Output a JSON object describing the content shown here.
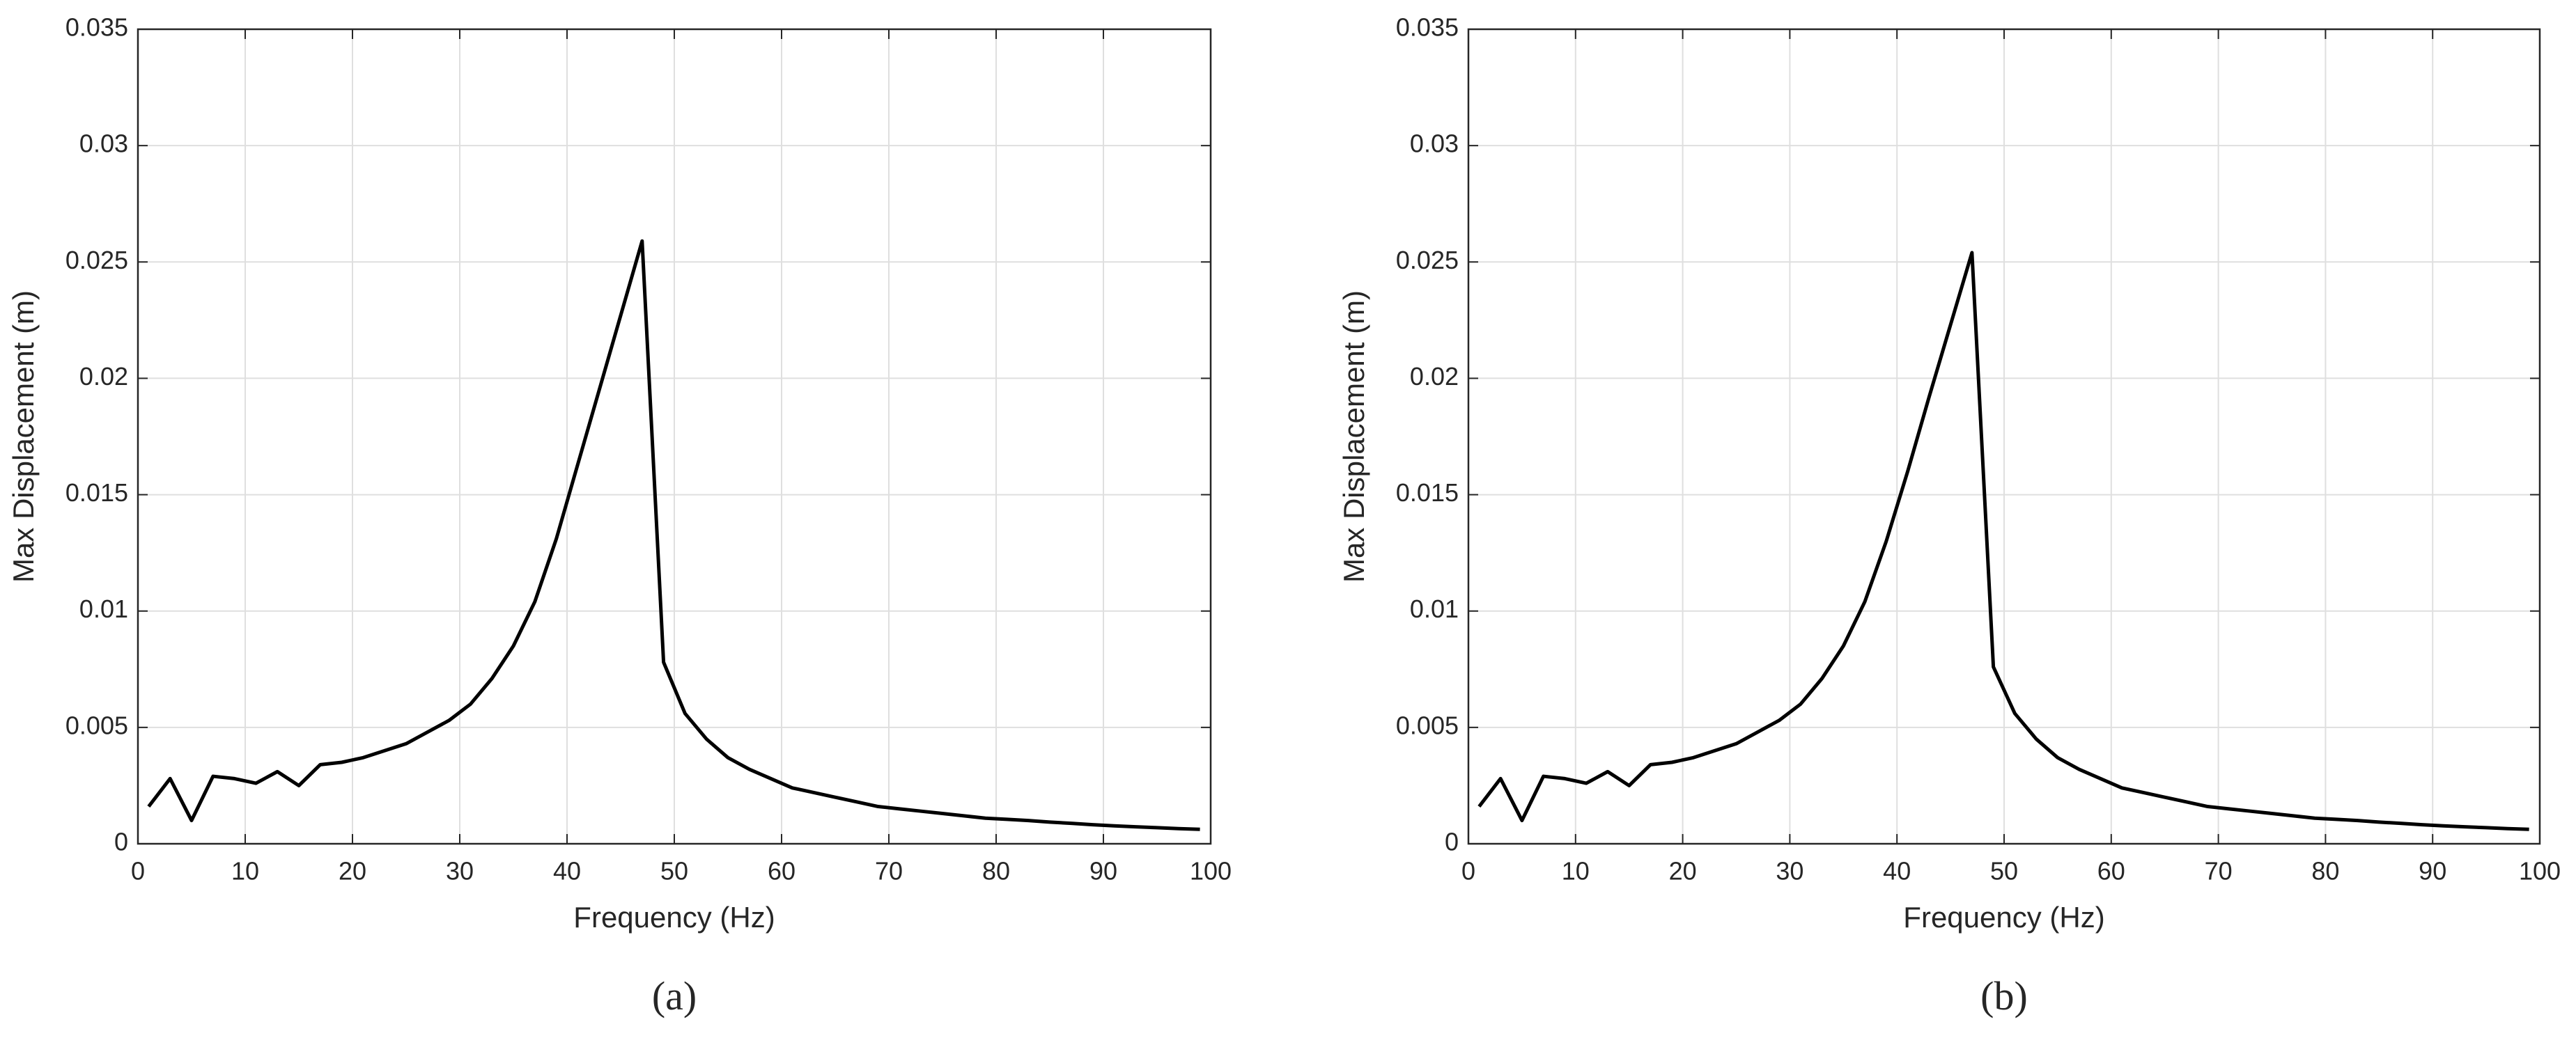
{
  "chart_data": [
    {
      "type": "line",
      "caption": "(a)",
      "xlabel": "Frequency (Hz)",
      "ylabel": "Max Displacement (m)",
      "xlim": [
        0,
        100
      ],
      "xticks": [
        0,
        10,
        20,
        30,
        40,
        50,
        60,
        70,
        80,
        90,
        100
      ],
      "ylim": [
        0,
        0.035
      ],
      "yticks": [
        0,
        0.005,
        0.01,
        0.015,
        0.02,
        0.025,
        0.03,
        0.035
      ],
      "grid": true,
      "x": [
        1,
        3,
        5,
        7,
        9,
        11,
        13,
        15,
        17,
        19,
        21,
        23,
        25,
        27,
        29,
        31,
        33,
        35,
        37,
        39,
        41,
        43,
        45,
        47,
        49,
        51,
        53,
        55,
        57,
        59,
        61,
        63,
        65,
        67,
        69,
        71,
        73,
        75,
        77,
        79,
        81,
        83,
        85,
        87,
        89,
        91,
        93,
        95,
        97,
        99
      ],
      "series": [
        {
          "color": "#000000",
          "values": [
            0.0016,
            0.0028,
            0.001,
            0.0029,
            0.0028,
            0.0026,
            0.0031,
            0.0025,
            0.0034,
            0.0035,
            0.0037,
            0.004,
            0.0043,
            0.0048,
            0.0053,
            0.006,
            0.0071,
            0.0085,
            0.0104,
            0.0131,
            0.0163,
            0.0195,
            0.0227,
            0.0259,
            0.0078,
            0.0056,
            0.0045,
            0.0037,
            0.0032,
            0.0028,
            0.0024,
            0.0022,
            0.002,
            0.0018,
            0.0016,
            0.0015,
            0.0014,
            0.0013,
            0.0012,
            0.0011,
            0.00105,
            0.001,
            0.00093,
            0.00088,
            0.00082,
            0.00077,
            0.00073,
            0.00069,
            0.00065,
            0.00062
          ]
        }
      ]
    },
    {
      "type": "line",
      "caption": "(b)",
      "xlabel": "Frequency (Hz)",
      "ylabel": "Max Displacement (m)",
      "xlim": [
        0,
        100
      ],
      "xticks": [
        0,
        10,
        20,
        30,
        40,
        50,
        60,
        70,
        80,
        90,
        100
      ],
      "ylim": [
        0,
        0.035
      ],
      "yticks": [
        0,
        0.005,
        0.01,
        0.015,
        0.02,
        0.025,
        0.03,
        0.035
      ],
      "grid": true,
      "x": [
        1,
        3,
        5,
        7,
        9,
        11,
        13,
        15,
        17,
        19,
        21,
        23,
        25,
        27,
        29,
        31,
        33,
        35,
        37,
        39,
        41,
        43,
        45,
        47,
        49,
        51,
        53,
        55,
        57,
        59,
        61,
        63,
        65,
        67,
        69,
        71,
        73,
        75,
        77,
        79,
        81,
        83,
        85,
        87,
        89,
        91,
        93,
        95,
        97,
        99
      ],
      "series": [
        {
          "color": "#000000",
          "values": [
            0.0016,
            0.0028,
            0.001,
            0.0029,
            0.0028,
            0.0026,
            0.0031,
            0.0025,
            0.0034,
            0.0035,
            0.0037,
            0.004,
            0.0043,
            0.0048,
            0.0053,
            0.006,
            0.0071,
            0.0085,
            0.0104,
            0.013,
            0.016,
            0.0192,
            0.0223,
            0.0254,
            0.0076,
            0.0056,
            0.0045,
            0.0037,
            0.0032,
            0.0028,
            0.0024,
            0.0022,
            0.002,
            0.0018,
            0.0016,
            0.0015,
            0.0014,
            0.0013,
            0.0012,
            0.0011,
            0.00105,
            0.001,
            0.00093,
            0.00088,
            0.00082,
            0.00077,
            0.00073,
            0.00069,
            0.00065,
            0.00062
          ]
        }
      ]
    }
  ]
}
